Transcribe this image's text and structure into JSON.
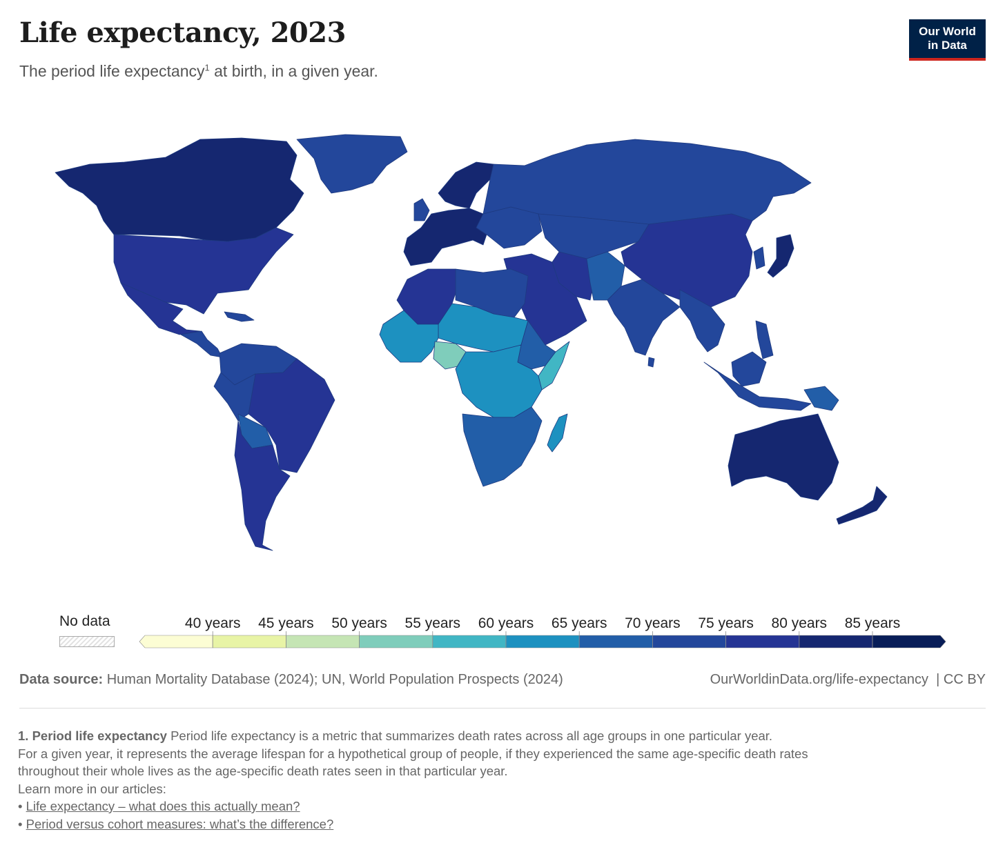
{
  "header": {
    "title": "Life expectancy, 2023",
    "subtitle_pre": "The period life expectancy",
    "subtitle_sup": "1",
    "subtitle_post": " at birth, in a given year."
  },
  "logo": {
    "line1": "Our World",
    "line2": "in Data"
  },
  "colors": {
    "scale": [
      "#fcfdd4",
      "#e8f4a6",
      "#c5e5b4",
      "#7fcdbb",
      "#41b6c4",
      "#1d91c0",
      "#225ea8",
      "#23479b",
      "#253494",
      "#152770",
      "#081d58"
    ],
    "land_default": "#23479b",
    "border": "#1e3a80",
    "nodata": "#e2e2e2"
  },
  "chart_data": {
    "type": "choropleth",
    "title": "Life expectancy, 2023",
    "unit": "years",
    "legend": {
      "no_data_label": "No data",
      "ticks": [
        40,
        45,
        50,
        55,
        60,
        65,
        70,
        75,
        80,
        85
      ],
      "tick_labels": [
        "40 years",
        "45 years",
        "50 years",
        "55 years",
        "60 years",
        "65 years",
        "70 years",
        "75 years",
        "80 years",
        "85 years"
      ],
      "bins": [
        [
          null,
          40
        ],
        [
          40,
          45
        ],
        [
          45,
          50
        ],
        [
          50,
          55
        ],
        [
          55,
          60
        ],
        [
          60,
          65
        ],
        [
          65,
          70
        ],
        [
          70,
          75
        ],
        [
          75,
          80
        ],
        [
          80,
          85
        ],
        [
          85,
          null
        ]
      ]
    },
    "regions_estimated": [
      {
        "name": "Canada",
        "value": 82
      },
      {
        "name": "United States",
        "value": 79
      },
      {
        "name": "Mexico",
        "value": 75
      },
      {
        "name": "Central America",
        "value": 74
      },
      {
        "name": "Brazil",
        "value": 76
      },
      {
        "name": "Argentina & Chile",
        "value": 78
      },
      {
        "name": "Bolivia",
        "value": 68
      },
      {
        "name": "Greenland",
        "value": 72
      },
      {
        "name": "Western Europe",
        "value": 82
      },
      {
        "name": "Scandinavia",
        "value": 83
      },
      {
        "name": "Russia",
        "value": 73
      },
      {
        "name": "Central Asia",
        "value": 72
      },
      {
        "name": "Middle East",
        "value": 75
      },
      {
        "name": "Iran",
        "value": 77
      },
      {
        "name": "Pakistan & Afghanistan",
        "value": 67
      },
      {
        "name": "India",
        "value": 72
      },
      {
        "name": "China",
        "value": 78
      },
      {
        "name": "Japan",
        "value": 84
      },
      {
        "name": "Southeast Asia",
        "value": 73
      },
      {
        "name": "Indonesia",
        "value": 71
      },
      {
        "name": "Papua New Guinea",
        "value": 66
      },
      {
        "name": "Australia",
        "value": 83
      },
      {
        "name": "New Zealand",
        "value": 82
      },
      {
        "name": "North Africa",
        "value": 76
      },
      {
        "name": "Libya & Egypt",
        "value": 71
      },
      {
        "name": "West Africa",
        "value": 62
      },
      {
        "name": "Nigeria",
        "value": 54
      },
      {
        "name": "Sahel",
        "value": 60
      },
      {
        "name": "Ethiopia",
        "value": 67
      },
      {
        "name": "Somalia",
        "value": 58
      },
      {
        "name": "Central Africa",
        "value": 61
      },
      {
        "name": "Southern Africa",
        "value": 66
      },
      {
        "name": "Madagascar",
        "value": 64
      }
    ]
  },
  "footer": {
    "source_label": "Data source:",
    "source_text": " Human Mortality Database (2024); UN, World Population Prospects (2024)",
    "url": "OurWorldinData.org/life-expectancy",
    "license": "CC BY"
  },
  "notes": {
    "heading": "1. Period life expectancy",
    "body": " Period life expectancy is a metric that summarizes death rates across all age groups in one particular year.",
    "line2": "For a given year, it represents the average lifespan for a hypothetical group of people, if they experienced the same age-specific death rates",
    "line3": "throughout their whole lives as the age-specific death rates seen in that particular year.",
    "learn_more": "Learn more in our articles:",
    "link1": "Life expectancy – what does this actually mean?",
    "link2": "Period versus cohort measures: what’s the difference? "
  }
}
